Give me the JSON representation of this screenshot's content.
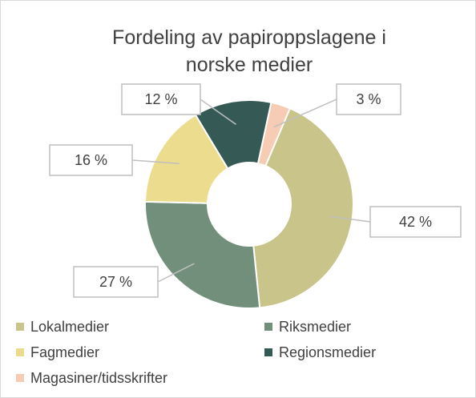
{
  "chart_data": {
    "type": "donut",
    "title": "Fordeling av papiroppslagene i norske medier",
    "categories": [
      "Lokalmedier",
      "Riksmedier",
      "Fagmedier",
      "Regionsmedier",
      "Magasiner/tidsskrifter"
    ],
    "values": [
      42,
      27,
      16,
      12,
      3
    ],
    "value_labels": [
      "42 %",
      "27 %",
      "16 %",
      "12 %",
      "3 %"
    ],
    "colors": [
      "#c9c489",
      "#728f7b",
      "#ecdc8e",
      "#355a55",
      "#f6cdb4"
    ],
    "legend": "bottom"
  }
}
